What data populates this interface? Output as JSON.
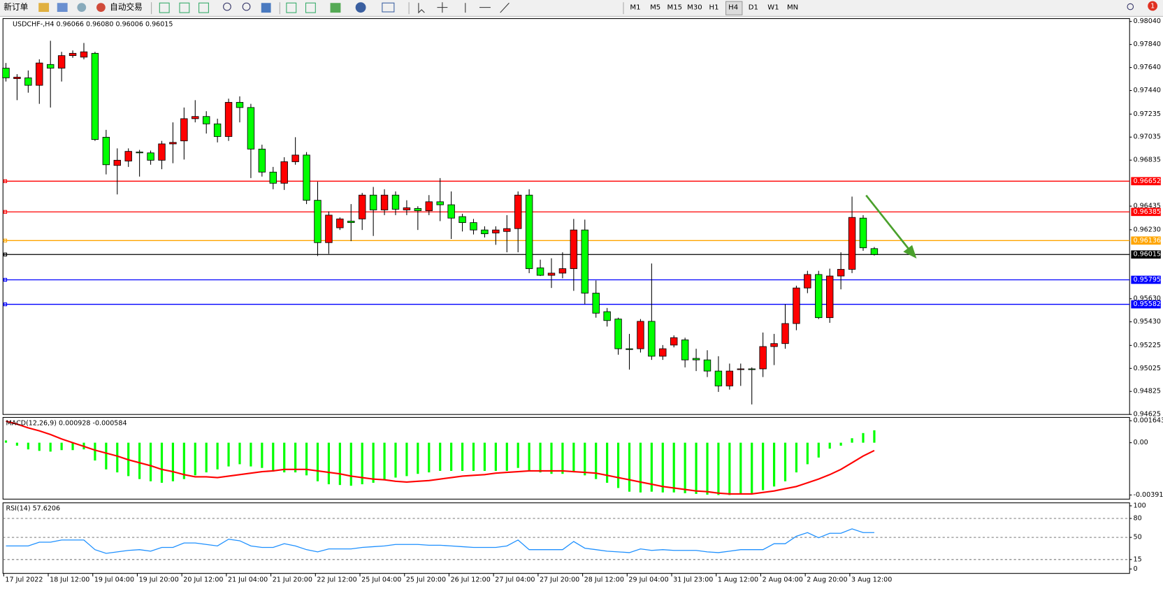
{
  "toolbar": {
    "new_order": "新订单",
    "auto_trading": "自动交易",
    "timeframes": [
      "M1",
      "M5",
      "M15",
      "M30",
      "H1",
      "H4",
      "D1",
      "W1",
      "MN"
    ],
    "notifications": "1"
  },
  "chart_data": [
    {
      "type": "candlestick",
      "title": "USDCHF-,H4  0.96066 0.96080 0.96006 0.96015",
      "categories": [
        "17 Jul 2022",
        null,
        null,
        null,
        "18 Jul 12:00",
        null,
        null,
        null,
        "19 Jul 04:00",
        null,
        null,
        null,
        "19 Jul 20:00",
        null,
        null,
        null,
        "20 Jul 12:00",
        null,
        null,
        null,
        "21 Jul 04:00",
        null,
        null,
        null,
        "21 Jul 20:00",
        null,
        null,
        null,
        "22 Jul 12:00",
        null,
        null,
        null,
        "25 Jul 04:00",
        null,
        null,
        null,
        "25 Jul 20:00",
        null,
        null,
        null,
        "26 Jul 12:00",
        null,
        null,
        null,
        "27 Jul 04:00",
        null,
        null,
        null,
        "27 Jul 20:00",
        null,
        null,
        null,
        "28 Jul 12:00",
        null,
        null,
        null,
        "29 Jul 04:00",
        null,
        null,
        null,
        "31 Jul 23:00",
        null,
        null,
        null,
        "1 Aug 12:00",
        null,
        null,
        null,
        "2 Aug 04:00",
        null,
        null,
        null,
        "2 Aug 20:00",
        null,
        null,
        null,
        "3 Aug 12:00",
        null,
        null
      ],
      "open": [
        0.97634,
        0.97543,
        0.9755,
        0.97485,
        0.97666,
        0.97634,
        0.97743,
        0.9773,
        0.97763,
        0.97034,
        0.96789,
        0.96827,
        0.96905,
        0.96898,
        0.96834,
        0.96976,
        0.97002,
        0.97195,
        0.97214,
        0.9715,
        0.9704,
        0.97337,
        0.97292,
        0.96931,
        0.96731,
        0.96634,
        0.96821,
        0.96879,
        0.96486,
        0.96118,
        0.96247,
        0.96305,
        0.96324,
        0.96531,
        0.96402,
        0.96531,
        0.96402,
        0.96415,
        0.96395,
        0.96473,
        0.96447,
        0.96344,
        0.96292,
        0.96228,
        0.96202,
        0.96215,
        0.9624,
        0.96531,
        0.95899,
        0.95834,
        0.95853,
        0.95892,
        0.96228,
        0.95679,
        0.95518,
        0.95454,
        0.95196,
        0.95196,
        0.95434,
        0.95131,
        0.95228,
        0.95273,
        0.95112,
        0.95099,
        0.95002,
        0.94873,
        0.95015,
        0.95021,
        0.95021,
        0.95215,
        0.95241,
        0.95415,
        0.95724,
        0.95841,
        0.95466,
        0.95828,
        0.95886,
        0.96331,
        0.96066
      ],
      "high": [
        0.97679,
        0.97582,
        0.97614,
        0.97711,
        0.97872,
        0.97776,
        0.97788,
        0.97853,
        0.97776,
        0.97098,
        0.96937,
        0.96937,
        0.96924,
        0.96918,
        0.97002,
        0.97163,
        0.97292,
        0.97356,
        0.9726,
        0.97195,
        0.97369,
        0.97389,
        0.97324,
        0.96969,
        0.96776,
        0.9686,
        0.97034,
        0.96905,
        0.96647,
        0.96389,
        0.96337,
        0.96453,
        0.9655,
        0.96602,
        0.96582,
        0.96563,
        0.96486,
        0.96434,
        0.96531,
        0.96679,
        0.96563,
        0.96369,
        0.96324,
        0.9626,
        0.9626,
        0.96357,
        0.96563,
        0.96582,
        0.9597,
        0.95982,
        0.96034,
        0.96324,
        0.96318,
        0.95789,
        0.9555,
        0.95466,
        0.95325,
        0.95454,
        0.95937,
        0.95228,
        0.95312,
        0.95292,
        0.95196,
        0.95183,
        0.95131,
        0.95067,
        0.95067,
        0.95034,
        0.95337,
        0.95325,
        0.95583,
        0.95744,
        0.95873,
        0.95873,
        0.95892,
        0.96034,
        0.96518,
        0.96357,
        0.9608
      ],
      "low": [
        0.97518,
        0.97356,
        0.97421,
        0.97324,
        0.97292,
        0.97518,
        0.97724,
        0.97711,
        0.97002,
        0.96711,
        0.96537,
        0.96776,
        0.96692,
        0.96795,
        0.96756,
        0.96808,
        0.9684,
        0.97163,
        0.97066,
        0.96989,
        0.97002,
        0.97163,
        0.96679,
        0.96692,
        0.96582,
        0.96576,
        0.96795,
        0.96453,
        0.96002,
        0.96021,
        0.96228,
        0.96131,
        0.96228,
        0.96176,
        0.96357,
        0.96357,
        0.96357,
        0.96228,
        0.96357,
        0.96305,
        0.9615,
        0.96215,
        0.96189,
        0.96163,
        0.96099,
        0.96034,
        0.96034,
        0.95853,
        0.95828,
        0.95724,
        0.95808,
        0.95699,
        0.95583,
        0.95466,
        0.95389,
        0.95144,
        0.95015,
        0.95163,
        0.95099,
        0.95099,
        0.95208,
        0.95034,
        0.95002,
        0.9495,
        0.94821,
        0.94841,
        0.94873,
        0.94712,
        0.9495,
        0.95054,
        0.95196,
        0.95357,
        0.95679,
        0.95454,
        0.95421,
        0.95712,
        0.95853,
        0.96047,
        0.96006
      ],
      "close": [
        0.9755,
        0.97556,
        0.97485,
        0.97679,
        0.97634,
        0.97743,
        0.97763,
        0.97776,
        0.97014,
        0.96795,
        0.96834,
        0.96911,
        0.96898,
        0.96834,
        0.96976,
        0.96989,
        0.97195,
        0.97214,
        0.9715,
        0.9704,
        0.97337,
        0.97292,
        0.96931,
        0.96731,
        0.96634,
        0.96821,
        0.96879,
        0.96486,
        0.96118,
        0.96357,
        0.96324,
        0.96292,
        0.96531,
        0.96402,
        0.96531,
        0.96408,
        0.96421,
        0.96395,
        0.96473,
        0.96447,
        0.96331,
        0.96292,
        0.96228,
        0.96195,
        0.96228,
        0.9624,
        0.96531,
        0.95892,
        0.95834,
        0.95853,
        0.95892,
        0.96228,
        0.95679,
        0.95505,
        0.95441,
        0.95196,
        0.95189,
        0.95434,
        0.95131,
        0.95196,
        0.95292,
        0.95099,
        0.95099,
        0.95002,
        0.94873,
        0.95002,
        0.95021,
        0.95015,
        0.95215,
        0.95241,
        0.95415,
        0.95724,
        0.95841,
        0.95466,
        0.95828,
        0.95886,
        0.96337,
        0.96073,
        0.96015
      ],
      "up_color": "#ff0000",
      "down_color": "#00ff00",
      "wick_color": "#000000",
      "ylim": [
        0.94625,
        0.98065
      ],
      "yticks": [
        {
          "value": 0.9804,
          "label": "0.98040"
        },
        {
          "value": 0.9784,
          "label": "0.97840"
        },
        {
          "value": 0.9764,
          "label": "0.97640"
        },
        {
          "value": 0.9744,
          "label": "0.97440"
        },
        0.97235,
        0.97035,
        0.96835,
        0.96435,
        {
          "value": 0.9623,
          "label": "0.96230"
        },
        {
          "value": 0.9563,
          "label": "0.95630"
        },
        {
          "value": 0.9543,
          "label": "0.95430"
        },
        0.95225,
        0.95025,
        0.94825,
        0.94625
      ],
      "hlines": [
        {
          "value": 0.96652,
          "color": "#ff0000"
        },
        {
          "value": 0.96385,
          "color": "#ff0000"
        },
        {
          "value": 0.96136,
          "color": "#ffa500"
        },
        {
          "value": 0.96015,
          "color": "#000000"
        },
        {
          "value": 0.95795,
          "color": "#0000ff"
        },
        {
          "value": 0.95582,
          "color": "#0000ff"
        }
      ],
      "grid": false
    },
    {
      "type": "combo",
      "title": "MACD(12,26,9) 0.000928 -0.000584",
      "series": [
        {
          "kind": "bar",
          "color": "#00ff00",
          "values": [
            0.000167,
            -0.000222,
            -0.0005,
            -0.000611,
            -0.000666,
            -0.000555,
            -0.000555,
            -0.0005,
            -0.001332,
            -0.001998,
            -0.00222,
            -0.002498,
            -0.00272,
            -0.002886,
            -0.002997,
            -0.002886,
            -0.00272,
            -0.002442,
            -0.00222,
            -0.001998,
            -0.001776,
            -0.00161,
            -0.001776,
            -0.001887,
            -0.002165,
            -0.00222,
            -0.00222,
            -0.002442,
            -0.002886,
            -0.003108,
            -0.003164,
            -0.003219,
            -0.003108,
            -0.002997,
            -0.002775,
            -0.002609,
            -0.002498,
            -0.002331,
            -0.00222,
            -0.002109,
            -0.002109,
            -0.002109,
            -0.002109,
            -0.002109,
            -0.002109,
            -0.002109,
            -0.001887,
            -0.002109,
            -0.00222,
            -0.002331,
            -0.002331,
            -0.00222,
            -0.002442,
            -0.00272,
            -0.002997,
            -0.003386,
            -0.003663,
            -0.003719,
            -0.003663,
            -0.003719,
            -0.003719,
            -0.003774,
            -0.00383,
            -0.003885,
            -0.003912,
            -0.003912,
            -0.003885,
            -0.003774,
            -0.003552,
            -0.003275,
            -0.002886,
            -0.00222,
            -0.00161,
            -0.00111,
            -0.000444,
            -0.000222,
            0.000333,
            0.000722,
            0.000928
          ]
        },
        {
          "kind": "line",
          "color": "#ff0000",
          "values": [
            0.00161,
            0.001388,
            0.00111,
            0.000888,
            0.000611,
            0.000278,
            0,
            -0.000278,
            -0.000555,
            -0.000777,
            -0.000999,
            -0.001277,
            -0.001499,
            -0.001721,
            -0.001998,
            -0.002165,
            -0.002387,
            -0.002553,
            -0.002553,
            -0.002609,
            -0.002498,
            -0.002387,
            -0.002276,
            -0.002165,
            -0.002109,
            -0.001998,
            -0.001998,
            -0.001998,
            -0.002109,
            -0.00222,
            -0.002331,
            -0.002498,
            -0.002609,
            -0.00272,
            -0.002775,
            -0.002886,
            -0.002942,
            -0.002886,
            -0.002831,
            -0.00272,
            -0.002609,
            -0.002498,
            -0.002442,
            -0.002387,
            -0.002276,
            -0.00222,
            -0.002165,
            -0.002109,
            -0.002109,
            -0.002109,
            -0.002109,
            -0.002165,
            -0.00222,
            -0.002276,
            -0.002442,
            -0.002609,
            -0.002775,
            -0.002942,
            -0.003108,
            -0.003275,
            -0.003386,
            -0.003497,
            -0.003608,
            -0.003663,
            -0.003774,
            -0.00383,
            -0.00383,
            -0.00383,
            -0.003719,
            -0.003608,
            -0.003441,
            -0.003275,
            -0.002997,
            -0.00272,
            -0.002387,
            -0.001998,
            -0.001499,
            -0.000999,
            -0.000584
          ]
        }
      ],
      "ylim": [
        -0.00422,
        0.00189
      ],
      "yticks": [
        0.001643,
        {
          "value": 0,
          "label": "0.00"
        },
        -0.003912
      ]
    },
    {
      "type": "line",
      "title": "RSI(14) 57.6206",
      "series": [
        {
          "color": "#1e90ff",
          "values": [
            36.5,
            36.5,
            36.5,
            42.4,
            42.4,
            45.9,
            45.9,
            45.9,
            30.6,
            24.7,
            27.1,
            29.4,
            30.6,
            28.2,
            34.1,
            34.1,
            41.2,
            41.2,
            38.8,
            36.5,
            47.1,
            44.7,
            36.5,
            34.1,
            34.1,
            40.0,
            36.5,
            30.6,
            27.1,
            31.8,
            31.8,
            31.8,
            34.1,
            35.3,
            36.5,
            38.8,
            38.8,
            38.8,
            37.6,
            37.6,
            36.5,
            35.3,
            34.1,
            34.1,
            34.1,
            36.5,
            45.9,
            30.6,
            30.6,
            30.6,
            30.6,
            43.5,
            32.9,
            30.6,
            28.2,
            27.1,
            25.9,
            31.8,
            29.4,
            30.6,
            29.4,
            29.4,
            29.4,
            27.1,
            25.9,
            28.2,
            30.6,
            30.6,
            30.6,
            40.0,
            40.0,
            51.8,
            57.6,
            49.4,
            56.5,
            56.5,
            63.5,
            57.6,
            57.6206
          ]
        }
      ],
      "ylim": [
        -7,
        104.7
      ],
      "yticks": [
        100,
        80,
        50,
        15,
        0
      ],
      "levels": [
        80,
        50,
        15
      ]
    }
  ]
}
